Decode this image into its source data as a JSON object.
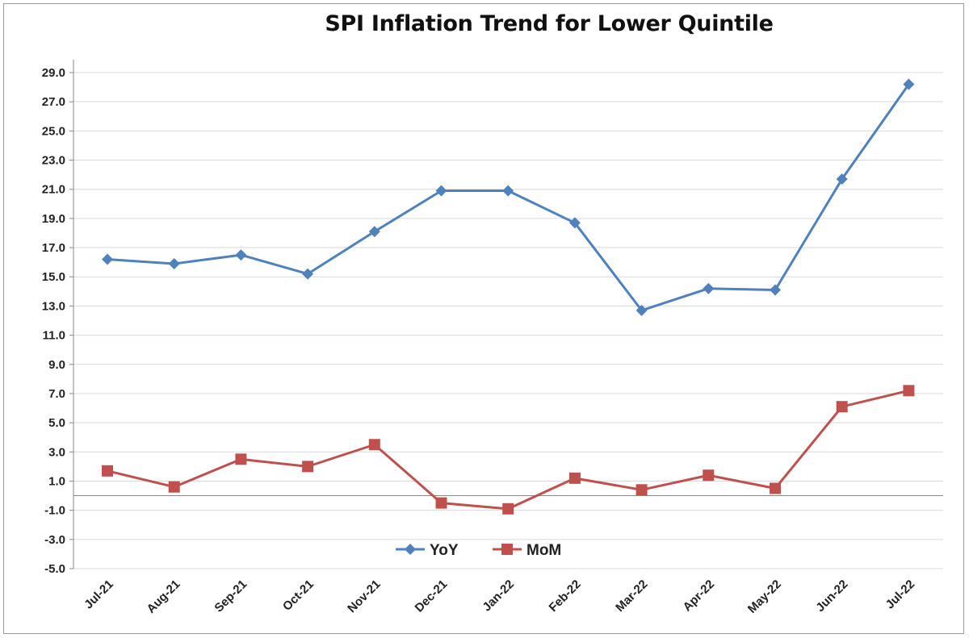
{
  "chart_data": {
    "type": "line",
    "title": "SPI Inflation Trend for Lower Quintile",
    "xlabel": "",
    "ylabel": "",
    "categories": [
      "Jul-21",
      "Aug-21",
      "Sep-21",
      "Oct-21",
      "Nov-21",
      "Dec-21",
      "Jan-22",
      "Feb-22",
      "Mar-22",
      "Apr-22",
      "May-22",
      "Jun-22",
      "Jul-22"
    ],
    "yticks": [
      "29.0",
      "27.0",
      "25.0",
      "23.0",
      "21.0",
      "19.0",
      "17.0",
      "15.0",
      "13.0",
      "11.0",
      "9.0",
      "7.0",
      "5.0",
      "3.0",
      "1.0",
      "-1.0",
      "-3.0",
      "-5.0"
    ],
    "ylim": [
      -5,
      29
    ],
    "grid": true,
    "legend_position": "bottom-center",
    "series": [
      {
        "name": "YoY",
        "color": "#4f81bd",
        "marker": "diamond",
        "values": [
          16.2,
          15.9,
          16.5,
          15.2,
          18.1,
          20.9,
          20.9,
          18.7,
          12.7,
          14.2,
          14.1,
          21.7,
          28.2
        ]
      },
      {
        "name": "MoM",
        "color": "#c0504d",
        "marker": "square",
        "values": [
          1.7,
          0.6,
          2.5,
          2.0,
          3.5,
          -0.5,
          -0.9,
          1.2,
          0.4,
          1.4,
          0.5,
          6.1,
          7.2
        ]
      }
    ]
  }
}
